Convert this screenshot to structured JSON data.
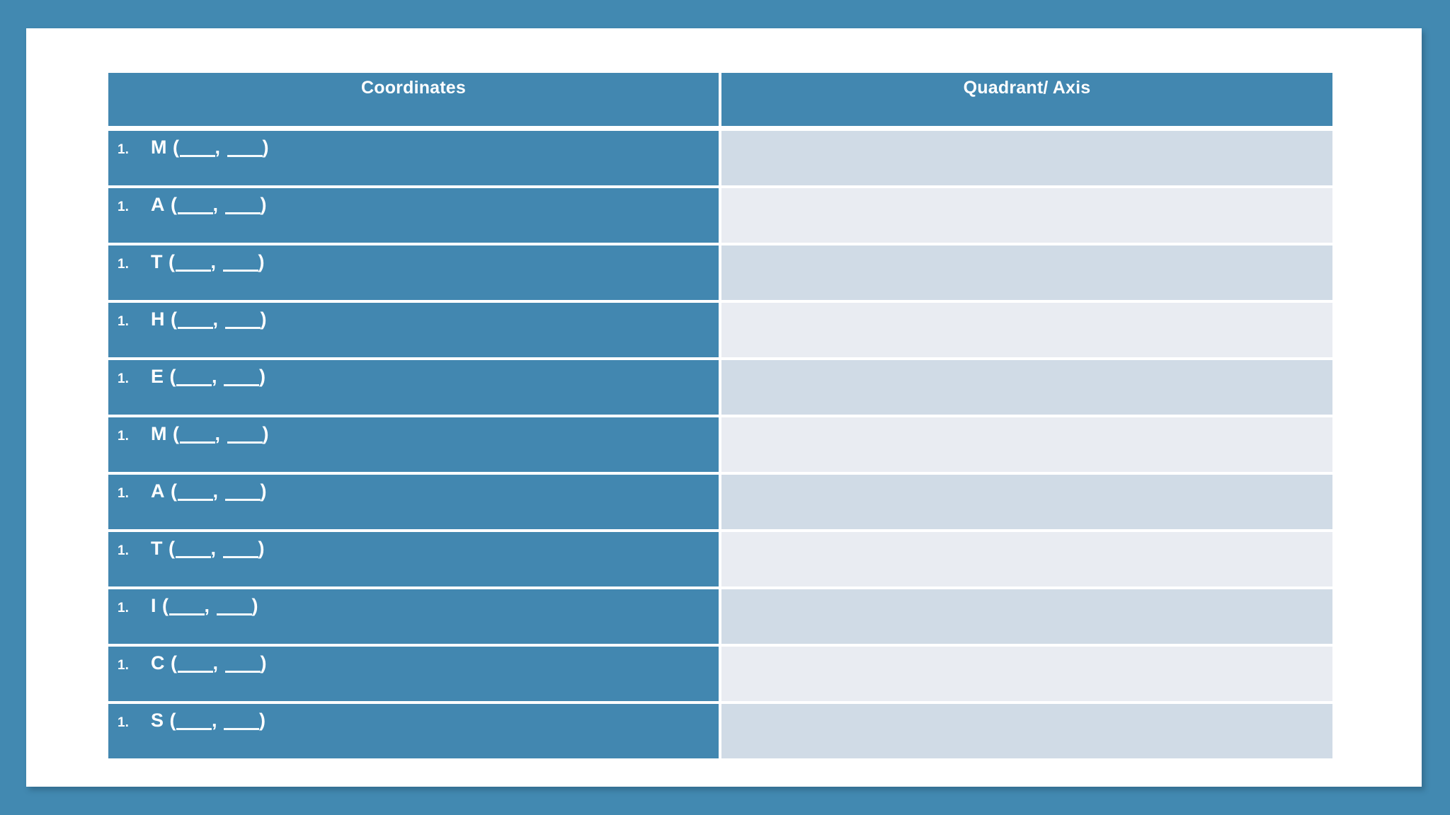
{
  "page": {
    "background_color": "#4289b1",
    "panel_color": "#ffffff",
    "cell_blue": "#4287b0",
    "answer_dark": "#d0dbe6",
    "answer_light": "#e9ecf2",
    "text_color": "#ffffff"
  },
  "table": {
    "headers": {
      "coordinates": "Coordinates",
      "quadrant_axis": "Quadrant/ Axis"
    },
    "row_template": {
      "open": "(",
      "separator": ",",
      "close": ")"
    },
    "rows": [
      {
        "num": "1.",
        "letter": "M"
      },
      {
        "num": "1.",
        "letter": "A"
      },
      {
        "num": "1.",
        "letter": "T"
      },
      {
        "num": "1.",
        "letter": "H"
      },
      {
        "num": "1.",
        "letter": "E"
      },
      {
        "num": "1.",
        "letter": "M"
      },
      {
        "num": "1.",
        "letter": "A"
      },
      {
        "num": "1.",
        "letter": "T"
      },
      {
        "num": "1.",
        "letter": "I"
      },
      {
        "num": "1.",
        "letter": "C"
      },
      {
        "num": "1.",
        "letter": "S"
      }
    ]
  }
}
